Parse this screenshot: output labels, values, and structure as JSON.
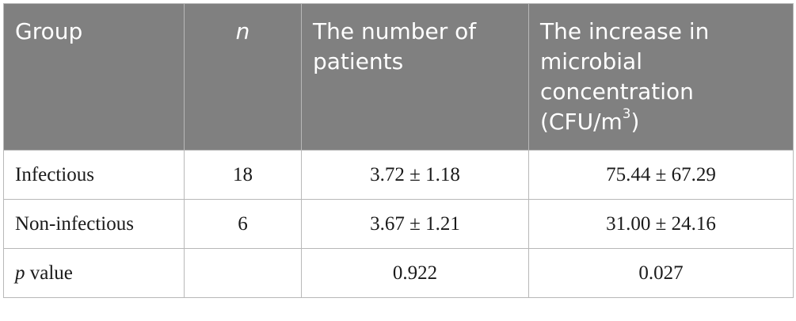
{
  "table": {
    "headers": {
      "group": "Group",
      "n": "n",
      "patients": "The number of patients",
      "increase_main": "The increase in microbial concentration (CFU/m",
      "increase_sup": "3",
      "increase_end": ")"
    },
    "rows": [
      {
        "group": "Infectious",
        "n": "18",
        "patients": "3.72 ± 1.18",
        "increase": "75.44 ± 67.29"
      },
      {
        "group": "Non-infectious",
        "n": "6",
        "patients": "3.67 ± 1.21",
        "increase": "31.00 ± 24.16"
      }
    ],
    "pvalue_row": {
      "label_italic": "p",
      "label_rest": " value",
      "n": "",
      "patients": "0.922",
      "increase": "0.027"
    }
  }
}
